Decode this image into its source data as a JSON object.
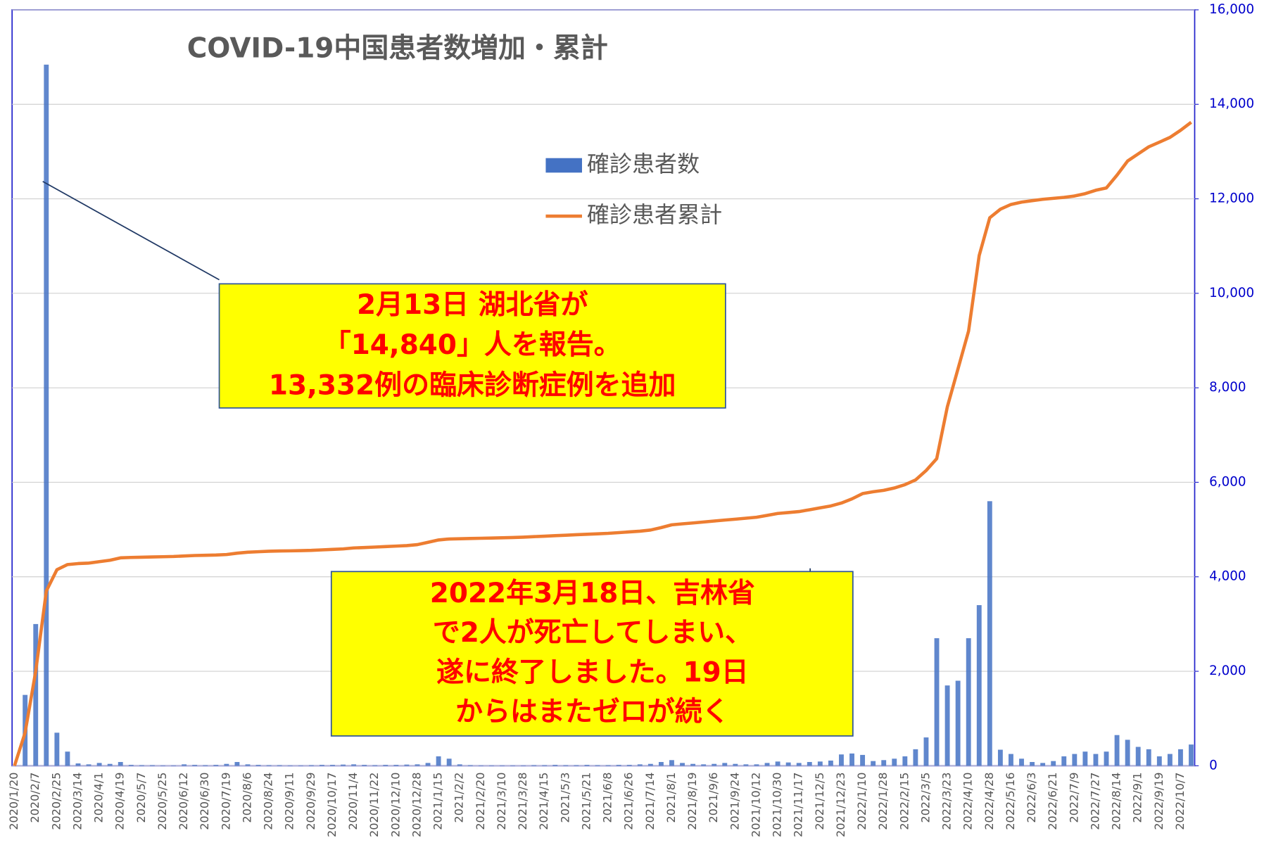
{
  "chart_data": {
    "type": "bar-line",
    "title": "COVID-19中国患者数増加・累計",
    "categories": [
      "2020/1/20",
      null,
      "2020/2/7",
      null,
      "2020/2/25",
      null,
      "2020/3/14",
      null,
      "2020/4/1",
      null,
      "2020/4/19",
      null,
      "2020/5/7",
      null,
      "2020/5/25",
      null,
      "2020/6/12",
      null,
      "2020/6/30",
      null,
      "2020/7/19",
      null,
      "2020/8/6",
      null,
      "2020/8/24",
      null,
      "2020/9/11",
      null,
      "2020/9/29",
      null,
      "2020/10/17",
      null,
      "2020/11/4",
      null,
      "2020/11/22",
      null,
      "2020/12/10",
      null,
      "2020/12/28",
      null,
      "2021/1/15",
      null,
      "2021/2/2",
      null,
      "2021/2/20",
      null,
      "2021/3/10",
      null,
      "2021/3/28",
      null,
      "2021/4/15",
      null,
      "2021/5/3",
      null,
      "2021/5/21",
      null,
      "2021/6/8",
      null,
      "2021/6/26",
      null,
      "2021/7/14",
      null,
      "2021/8/1",
      null,
      "2021/8/19",
      null,
      "2021/9/6",
      null,
      "2021/9/24",
      null,
      "2021/10/12",
      null,
      "2021/10/30",
      null,
      "2021/11/17",
      null,
      "2021/12/5",
      null,
      "2021/12/23",
      null,
      "2022/1/10",
      null,
      "2022/1/28",
      null,
      "2022/2/15",
      null,
      "2022/3/5",
      null,
      "2022/3/23",
      null,
      "2022/4/10",
      null,
      "2022/4/28",
      null,
      "2022/5/16",
      null,
      "2022/6/3",
      null,
      "2022/6/21",
      null,
      "2022/7/9",
      null,
      "2022/7/27",
      null,
      "2022/8/14",
      null,
      "2022/9/1",
      null,
      "2022/9/19",
      null,
      "2022/10/7",
      null
    ],
    "series": [
      {
        "name": "確診患者数",
        "type": "bar",
        "color": "#4472c4",
        "values": [
          0,
          1500,
          3000,
          14840,
          700,
          300,
          50,
          30,
          60,
          40,
          80,
          20,
          15,
          15,
          10,
          10,
          30,
          20,
          15,
          20,
          40,
          80,
          30,
          20,
          15,
          15,
          10,
          10,
          15,
          20,
          20,
          25,
          30,
          20,
          15,
          20,
          20,
          25,
          30,
          60,
          200,
          150,
          30,
          15,
          10,
          10,
          10,
          10,
          10,
          15,
          15,
          20,
          15,
          15,
          20,
          15,
          15,
          20,
          20,
          30,
          40,
          80,
          120,
          60,
          40,
          30,
          40,
          60,
          40,
          30,
          30,
          60,
          90,
          70,
          60,
          80,
          90,
          110,
          240,
          260,
          230,
          100,
          120,
          150,
          200,
          350,
          600,
          2700,
          1700,
          1800,
          2700,
          3400,
          5600,
          340,
          250,
          150,
          80,
          60,
          100,
          200,
          250,
          300,
          250,
          300,
          650,
          550,
          400,
          350,
          200,
          250,
          350,
          450
        ]
      },
      {
        "name": "確診患者累計",
        "type": "line",
        "color": "#ed7d31",
        "values": [
          0,
          700,
          2000,
          3700,
          4150,
          4260,
          4280,
          4290,
          4320,
          4350,
          4400,
          4410,
          4415,
          4420,
          4425,
          4430,
          4440,
          4450,
          4455,
          4460,
          4470,
          4500,
          4520,
          4530,
          4540,
          4545,
          4550,
          4555,
          4560,
          4570,
          4580,
          4590,
          4610,
          4620,
          4630,
          4640,
          4650,
          4660,
          4680,
          4730,
          4780,
          4800,
          4805,
          4810,
          4815,
          4820,
          4825,
          4830,
          4840,
          4850,
          4860,
          4870,
          4880,
          4890,
          4900,
          4910,
          4920,
          4935,
          4950,
          4965,
          4990,
          5040,
          5100,
          5120,
          5140,
          5160,
          5180,
          5200,
          5220,
          5240,
          5260,
          5300,
          5340,
          5360,
          5380,
          5420,
          5460,
          5500,
          5560,
          5650,
          5760,
          5800,
          5830,
          5880,
          5950,
          6050,
          6250,
          6500,
          7600,
          8400,
          9200,
          10800,
          11600,
          11780,
          11880,
          11930,
          11960,
          11990,
          12010,
          12030,
          12060,
          12110,
          12180,
          12230,
          12500,
          12800,
          12950,
          13100,
          13200,
          13300,
          13450,
          13620
        ]
      }
    ],
    "ylim": [
      0,
      16000
    ],
    "yticks": [
      0,
      {
        "value": 2000,
        "label": "2,000"
      },
      {
        "value": 4000,
        "label": "4,000"
      },
      {
        "value": 6000,
        "label": "6,000"
      },
      {
        "value": 8000,
        "label": "8,000"
      },
      {
        "value": 10000,
        "label": "10,000"
      },
      {
        "value": 12000,
        "label": "12,000"
      },
      {
        "value": 14000,
        "label": "14,000"
      },
      {
        "value": 16000,
        "label": "16,000"
      }
    ],
    "grid": true,
    "annotations": [
      {
        "lines": [
          "2月13日 湖北省が",
          "「14,840」人を報告。",
          "13,332例の臨床診断症例を追加"
        ]
      },
      {
        "lines": [
          "2022年3月18日、吉林省",
          "で2人が死亡してしまい、",
          "遂に終了しました。19日",
          "からはまたゼロが続く"
        ]
      }
    ]
  }
}
